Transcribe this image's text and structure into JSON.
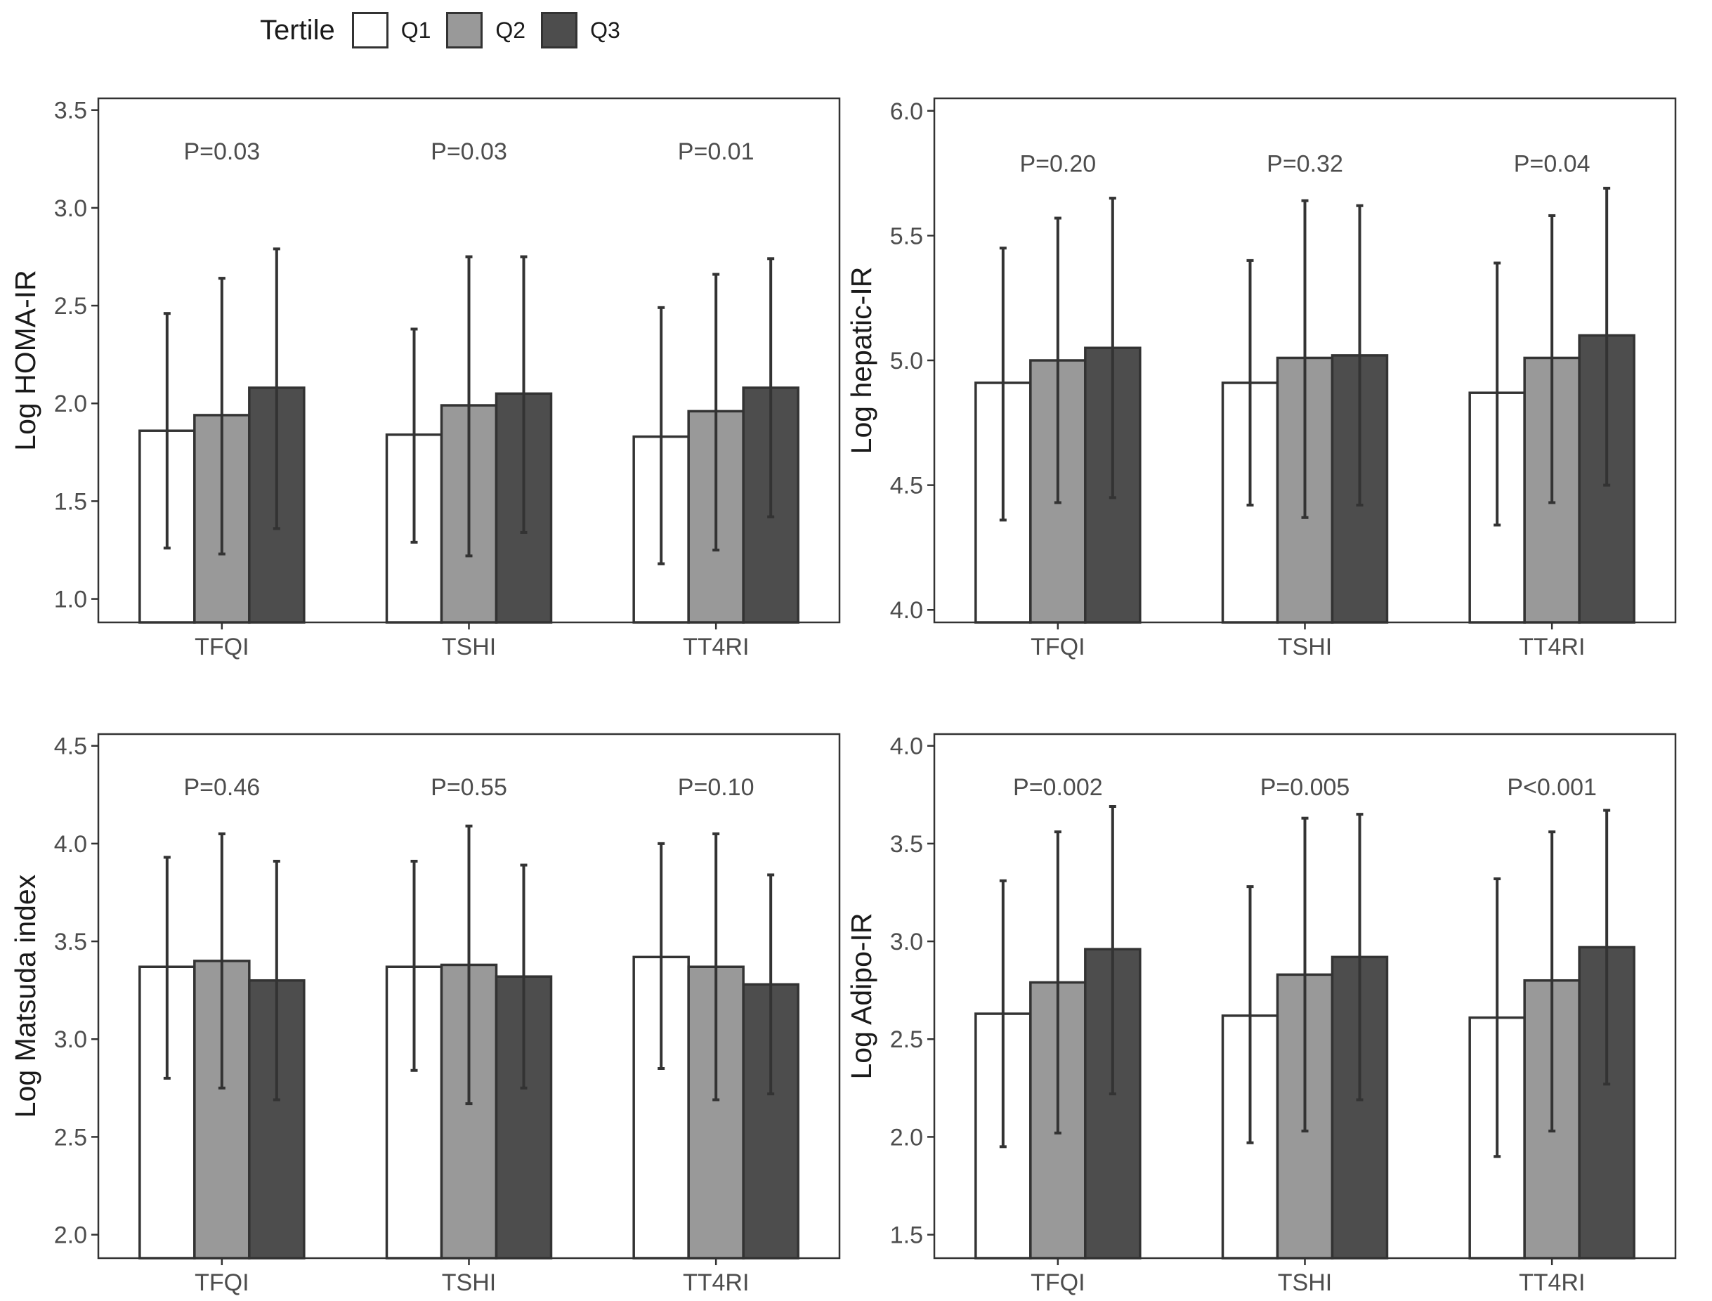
{
  "legend": {
    "title": "Tertile",
    "items": [
      {
        "label": "Q1",
        "color": "#ffffff"
      },
      {
        "label": "Q2",
        "color": "#999999"
      },
      {
        "label": "Q3",
        "color": "#4d4d4d"
      }
    ]
  },
  "colors": {
    "frame": "#333333",
    "tick_text": "#4d4d4d",
    "title_text": "#1a1a1a"
  },
  "chart_data": [
    {
      "type": "bar",
      "ylabel": "Log HOMA-IR",
      "ylim": [
        0.88,
        3.56
      ],
      "yticks": [
        1.0,
        1.5,
        2.0,
        2.5,
        3.0,
        3.5
      ],
      "ytick_labels": [
        "1.0",
        "1.5",
        "2.0",
        "2.5",
        "3.0",
        "3.5"
      ],
      "categories": [
        "TFQI",
        "TSHI",
        "TT4RI"
      ],
      "pvalues": [
        "P=0.03",
        "P=0.03",
        "P=0.01"
      ],
      "pvalue_y": 3.29,
      "series": [
        {
          "name": "Q1",
          "values": [
            1.86,
            1.84,
            1.83
          ],
          "lower": [
            1.26,
            1.29,
            1.18
          ],
          "upper": [
            2.46,
            2.38,
            2.49
          ]
        },
        {
          "name": "Q2",
          "values": [
            1.94,
            1.99,
            1.96
          ],
          "lower": [
            1.23,
            1.22,
            1.25
          ],
          "upper": [
            2.64,
            2.75,
            2.66
          ]
        },
        {
          "name": "Q3",
          "values": [
            2.08,
            2.05,
            2.08
          ],
          "lower": [
            1.36,
            1.34,
            1.42
          ],
          "upper": [
            2.79,
            2.75,
            2.74
          ]
        }
      ]
    },
    {
      "type": "bar",
      "ylabel": "Log hepatic-IR",
      "ylim": [
        3.95,
        6.05
      ],
      "yticks": [
        4.0,
        4.5,
        5.0,
        5.5,
        6.0
      ],
      "ytick_labels": [
        "4.0",
        "4.5",
        "5.0",
        "5.5",
        "6.0"
      ],
      "categories": [
        "TFQI",
        "TSHI",
        "TT4RI"
      ],
      "pvalues": [
        "P=0.20",
        "P=0.32",
        "P=0.04"
      ],
      "pvalue_y": 5.79,
      "series": [
        {
          "name": "Q1",
          "values": [
            4.91,
            4.91,
            4.87
          ],
          "lower": [
            4.36,
            4.42,
            4.34
          ],
          "upper": [
            5.45,
            5.4,
            5.39
          ]
        },
        {
          "name": "Q2",
          "values": [
            5.0,
            5.01,
            5.01
          ],
          "lower": [
            4.43,
            4.37,
            4.43
          ],
          "upper": [
            5.57,
            5.64,
            5.58
          ]
        },
        {
          "name": "Q3",
          "values": [
            5.05,
            5.02,
            5.1
          ],
          "lower": [
            4.45,
            4.42,
            4.5
          ],
          "upper": [
            5.65,
            5.62,
            5.69
          ]
        }
      ]
    },
    {
      "type": "bar",
      "ylabel": "Log Matsuda index",
      "ylim": [
        1.88,
        4.56
      ],
      "yticks": [
        2.0,
        2.5,
        3.0,
        3.5,
        4.0,
        4.5
      ],
      "ytick_labels": [
        "2.0",
        "2.5",
        "3.0",
        "3.5",
        "4.0",
        "4.5"
      ],
      "categories": [
        "TFQI",
        "TSHI",
        "TT4RI"
      ],
      "pvalues": [
        "P=0.46",
        "P=0.55",
        "P=0.10"
      ],
      "pvalue_y": 4.29,
      "series": [
        {
          "name": "Q1",
          "values": [
            3.37,
            3.37,
            3.42
          ],
          "lower": [
            2.8,
            2.84,
            2.85
          ],
          "upper": [
            3.93,
            3.91,
            4.0
          ]
        },
        {
          "name": "Q2",
          "values": [
            3.4,
            3.38,
            3.37
          ],
          "lower": [
            2.75,
            2.67,
            2.69
          ],
          "upper": [
            4.05,
            4.09,
            4.05
          ]
        },
        {
          "name": "Q3",
          "values": [
            3.3,
            3.32,
            3.28
          ],
          "lower": [
            2.69,
            2.75,
            2.72
          ],
          "upper": [
            3.91,
            3.89,
            3.84
          ]
        }
      ]
    },
    {
      "type": "bar",
      "ylabel": "Log Adipo-IR",
      "ylim": [
        1.38,
        4.06
      ],
      "yticks": [
        1.5,
        2.0,
        2.5,
        3.0,
        3.5,
        4.0
      ],
      "ytick_labels": [
        "1.5",
        "2.0",
        "2.5",
        "3.0",
        "3.5",
        "4.0"
      ],
      "categories": [
        "TFQI",
        "TSHI",
        "TT4RI"
      ],
      "pvalues": [
        "P=0.002",
        "P=0.005",
        "P<0.001"
      ],
      "pvalue_y": 3.79,
      "series": [
        {
          "name": "Q1",
          "values": [
            2.63,
            2.62,
            2.61
          ],
          "lower": [
            1.95,
            1.97,
            1.9
          ],
          "upper": [
            3.31,
            3.28,
            3.32
          ]
        },
        {
          "name": "Q2",
          "values": [
            2.79,
            2.83,
            2.8
          ],
          "lower": [
            2.02,
            2.03,
            2.03
          ],
          "upper": [
            3.56,
            3.63,
            3.56
          ]
        },
        {
          "name": "Q3",
          "values": [
            2.96,
            2.92,
            2.97
          ],
          "lower": [
            2.22,
            2.19,
            2.27
          ],
          "upper": [
            3.69,
            3.65,
            3.67
          ]
        }
      ]
    }
  ]
}
